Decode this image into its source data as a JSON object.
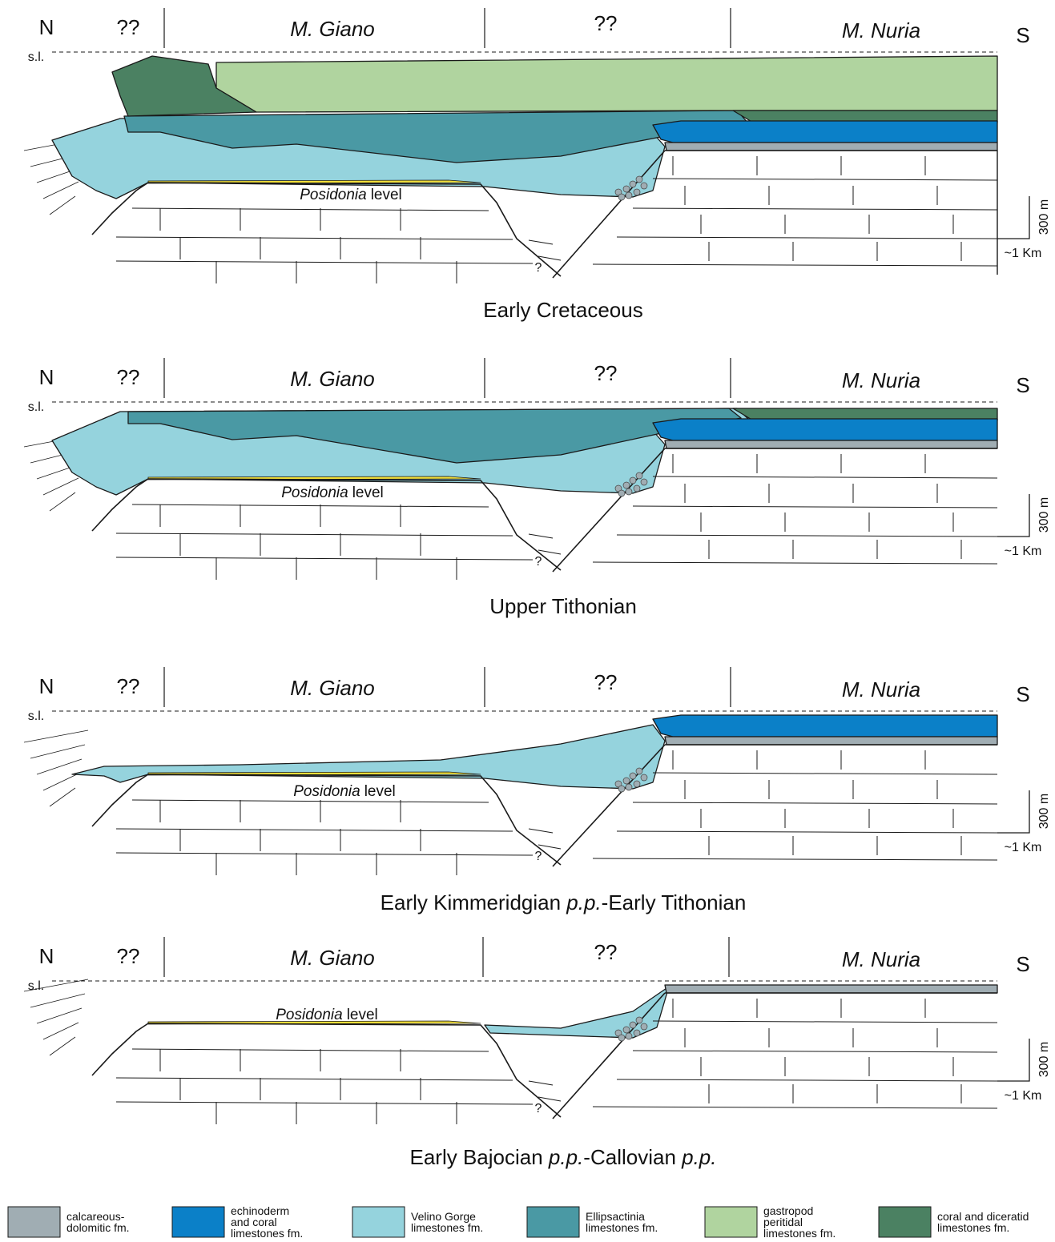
{
  "panels": [
    {
      "north": "N",
      "south": "S",
      "sea_level": "s.l.",
      "unknown_left": "??",
      "left_massif": "M. Giano",
      "unknown_middle": "??",
      "right_massif": "M. Nuria",
      "posidonia": [
        "Posidonia",
        "level"
      ],
      "question": "?",
      "scale_vertical": "300 m",
      "scale_horizontal": "~1 Km",
      "title_parts": [
        "Early Cretaceous"
      ]
    },
    {
      "north": "N",
      "south": "S",
      "sea_level": "s.l.",
      "unknown_left": "??",
      "left_massif": "M. Giano",
      "unknown_middle": "??",
      "right_massif": "M. Nuria",
      "posidonia": [
        "Posidonia",
        "level"
      ],
      "question": "?",
      "scale_vertical": "300 m",
      "scale_horizontal": "~1 Km",
      "title_parts": [
        "Upper Tithonian"
      ]
    },
    {
      "north": "N",
      "south": "S",
      "sea_level": "s.l.",
      "unknown_left": "??",
      "left_massif": "M. Giano",
      "unknown_middle": "??",
      "right_massif": "M. Nuria",
      "posidonia": [
        "Posidonia",
        "level"
      ],
      "question": "?",
      "scale_vertical": "300 m",
      "scale_horizontal": "~1 Km",
      "title_parts": [
        "Early Kimmeridgian ",
        "p.p.",
        "-Early Tithonian"
      ]
    },
    {
      "north": "N",
      "south": "S",
      "sea_level": "s.l.",
      "unknown_left": "??",
      "left_massif": "M. Giano",
      "unknown_middle": "??",
      "right_massif": "M. Nuria",
      "posidonia": [
        "Posidonia",
        "level"
      ],
      "question": "?",
      "scale_vertical": "300 m",
      "scale_horizontal": "~1 Km",
      "title_parts": [
        "Early Bajocian ",
        "p.p.",
        "-Callovian ",
        "p.p."
      ]
    }
  ],
  "legend": [
    {
      "label": [
        "calcareous-",
        "dolomitic fm."
      ],
      "color": "#a0adb3"
    },
    {
      "label": [
        "echinoderm",
        "and coral",
        "limestones fm."
      ],
      "color": "#0b80c8"
    },
    {
      "label": [
        "Velino Gorge",
        "limestones fm."
      ],
      "color": "#95d3dd"
    },
    {
      "label": [
        "Ellipsactinia",
        "limestones fm."
      ],
      "color": "#4a99a4"
    },
    {
      "label": [
        "gastropod",
        "peritidal",
        "limestones fm."
      ],
      "color": "#b0d49f"
    },
    {
      "label": [
        "coral and diceratid",
        "limestones fm."
      ],
      "color": "#4b8162"
    }
  ]
}
